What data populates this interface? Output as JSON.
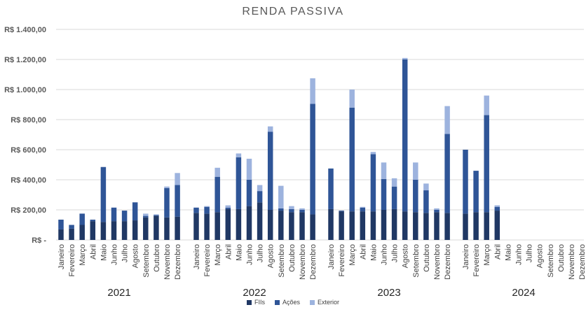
{
  "chart_data": {
    "type": "bar",
    "stacked": true,
    "title": "RENDA PASSIVA",
    "xlabel": "",
    "ylabel": "",
    "ylim": [
      0,
      1400
    ],
    "y_ticks": [
      "R$ -",
      "R$ 200,00",
      "R$ 400,00",
      "R$ 600,00",
      "R$ 800,00",
      "R$ 1.000,00",
      "R$ 1.200,00",
      "R$ 1.400,00"
    ],
    "grid": true,
    "legend_position": "bottom",
    "colors": {
      "FIIs": "#203864",
      "Ações": "#2F5597",
      "Exterior": "#9DB3DE",
      "grid": "#D9D9D9"
    },
    "groups": [
      {
        "year": "2021",
        "categories": [
          "Janeiro",
          "Fevereiro",
          "Março",
          "Abril",
          "Maio",
          "Junho",
          "Julho",
          "Agosto",
          "Setembro",
          "Outubro",
          "Novembro",
          "Dezembro"
        ],
        "series": [
          {
            "name": "FIIs",
            "values": [
              70,
              75,
              100,
              125,
              120,
              125,
              125,
              130,
              150,
              160,
              150,
              155
            ]
          },
          {
            "name": "Ações",
            "values": [
              65,
              25,
              75,
              10,
              365,
              90,
              70,
              120,
              10,
              5,
              195,
              210
            ]
          },
          {
            "name": "Exterior",
            "values": [
              0,
              0,
              0,
              0,
              0,
              0,
              0,
              0,
              15,
              5,
              10,
              80
            ]
          }
        ]
      },
      {
        "year": "2022",
        "categories": [
          "Janeiro",
          "Fevereiro",
          "Março",
          "Abril",
          "Maio",
          "Junho",
          "Julho",
          "Agosto",
          "Setembro",
          "Outubro",
          "Novembro",
          "Dezembro"
        ],
        "series": [
          {
            "name": "FIIs",
            "values": [
              180,
              175,
              185,
              205,
              205,
              225,
              250,
              200,
              195,
              185,
              185,
              170
            ]
          },
          {
            "name": "Ações",
            "values": [
              35,
              45,
              235,
              10,
              345,
              175,
              75,
              520,
              15,
              20,
              15,
              735
            ]
          },
          {
            "name": "Exterior",
            "values": [
              0,
              5,
              60,
              15,
              25,
              140,
              40,
              35,
              150,
              20,
              10,
              170
            ]
          }
        ]
      },
      {
        "year": "2023",
        "categories": [
          "Janeiro",
          "Fevereiro",
          "Março",
          "Abril",
          "Maio",
          "Junho",
          "Julho",
          "Agosto",
          "Setembro",
          "Outubro",
          "Novembro",
          "Dezembro"
        ],
        "series": [
          {
            "name": "FIIs",
            "values": [
              205,
              190,
              190,
              190,
              190,
              200,
              205,
              190,
              185,
              180,
              185,
              180
            ]
          },
          {
            "name": "Ações",
            "values": [
              270,
              5,
              690,
              25,
              380,
              205,
              150,
              1010,
              215,
              150,
              15,
              525
            ]
          },
          {
            "name": "Exterior",
            "values": [
              0,
              0,
              120,
              5,
              15,
              110,
              55,
              10,
              115,
              45,
              10,
              185
            ]
          }
        ]
      },
      {
        "year": "2024",
        "categories": [
          "Janeiro",
          "Fevereiro",
          "Março",
          "Abril",
          "Maio",
          "Junho",
          "Julho",
          "Agosto",
          "Setembro",
          "Outubro",
          "Novembro",
          "Dezembro"
        ],
        "series": [
          {
            "name": "FIIs",
            "values": [
              175,
              185,
              185,
              195,
              0,
              0,
              0,
              0,
              0,
              0,
              0,
              0
            ]
          },
          {
            "name": "Ações",
            "values": [
              425,
              275,
              645,
              25,
              0,
              0,
              0,
              0,
              0,
              0,
              0,
              0
            ]
          },
          {
            "name": "Exterior",
            "values": [
              0,
              0,
              130,
              10,
              0,
              0,
              0,
              0,
              0,
              0,
              0,
              0
            ]
          }
        ]
      }
    ]
  },
  "legend": [
    {
      "label": "FIIs",
      "color": "#203864"
    },
    {
      "label": "Ações",
      "color": "#2F5597"
    },
    {
      "label": "Exterior",
      "color": "#9DB3DE"
    }
  ]
}
